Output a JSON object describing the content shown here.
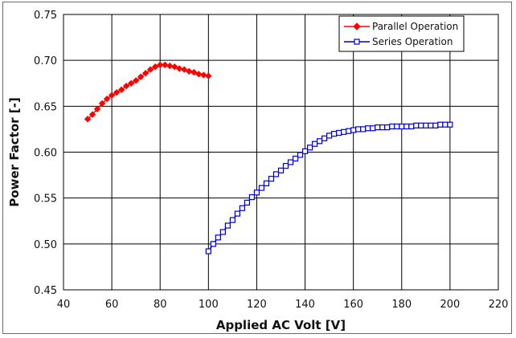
{
  "chart_data": {
    "type": "scatter",
    "title": "",
    "xlabel": "Applied AC Volt [V]",
    "ylabel": "Power Factor [-]",
    "xlim": [
      40,
      220
    ],
    "ylim": [
      0.45,
      0.75
    ],
    "x_ticks": [
      "40",
      "60",
      "80",
      "100",
      "120",
      "140",
      "160",
      "180",
      "200",
      "220"
    ],
    "y_ticks": [
      "0.45",
      "0.50",
      "0.55",
      "0.60",
      "0.65",
      "0.70",
      "0.75"
    ],
    "grid": true,
    "legend_position": "top-right",
    "series": [
      {
        "name": "Parallel Operation",
        "color": "#ff0000",
        "marker": "filled-diamond",
        "points": [
          [
            50,
            0.636
          ],
          [
            52,
            0.641
          ],
          [
            54,
            0.647
          ],
          [
            56,
            0.653
          ],
          [
            58,
            0.658
          ],
          [
            60,
            0.662
          ],
          [
            62,
            0.665
          ],
          [
            64,
            0.668
          ],
          [
            66,
            0.672
          ],
          [
            68,
            0.675
          ],
          [
            70,
            0.678
          ],
          [
            72,
            0.682
          ],
          [
            74,
            0.686
          ],
          [
            76,
            0.69
          ],
          [
            78,
            0.693
          ],
          [
            80,
            0.695
          ],
          [
            82,
            0.695
          ],
          [
            84,
            0.694
          ],
          [
            86,
            0.693
          ],
          [
            88,
            0.691
          ],
          [
            90,
            0.69
          ],
          [
            92,
            0.688
          ],
          [
            94,
            0.687
          ],
          [
            96,
            0.685
          ],
          [
            98,
            0.684
          ],
          [
            100,
            0.683
          ]
        ]
      },
      {
        "name": "Series Operation",
        "color": "#0000cc",
        "marker": "open-square",
        "points": [
          [
            100,
            0.492
          ],
          [
            102,
            0.5
          ],
          [
            104,
            0.507
          ],
          [
            106,
            0.513
          ],
          [
            108,
            0.52
          ],
          [
            110,
            0.526
          ],
          [
            112,
            0.533
          ],
          [
            114,
            0.539
          ],
          [
            116,
            0.545
          ],
          [
            118,
            0.551
          ],
          [
            120,
            0.556
          ],
          [
            122,
            0.561
          ],
          [
            124,
            0.566
          ],
          [
            126,
            0.571
          ],
          [
            128,
            0.576
          ],
          [
            130,
            0.58
          ],
          [
            132,
            0.585
          ],
          [
            134,
            0.589
          ],
          [
            136,
            0.593
          ],
          [
            138,
            0.597
          ],
          [
            140,
            0.601
          ],
          [
            142,
            0.605
          ],
          [
            144,
            0.609
          ],
          [
            146,
            0.612
          ],
          [
            148,
            0.615
          ],
          [
            150,
            0.618
          ],
          [
            152,
            0.62
          ],
          [
            154,
            0.621
          ],
          [
            156,
            0.622
          ],
          [
            158,
            0.623
          ],
          [
            160,
            0.624
          ],
          [
            162,
            0.625
          ],
          [
            164,
            0.625
          ],
          [
            166,
            0.626
          ],
          [
            168,
            0.626
          ],
          [
            170,
            0.627
          ],
          [
            172,
            0.627
          ],
          [
            174,
            0.627
          ],
          [
            176,
            0.628
          ],
          [
            178,
            0.628
          ],
          [
            180,
            0.628
          ],
          [
            182,
            0.628
          ],
          [
            184,
            0.628
          ],
          [
            186,
            0.629
          ],
          [
            188,
            0.629
          ],
          [
            190,
            0.629
          ],
          [
            192,
            0.629
          ],
          [
            194,
            0.629
          ],
          [
            196,
            0.63
          ],
          [
            198,
            0.63
          ],
          [
            200,
            0.63
          ]
        ]
      }
    ]
  }
}
